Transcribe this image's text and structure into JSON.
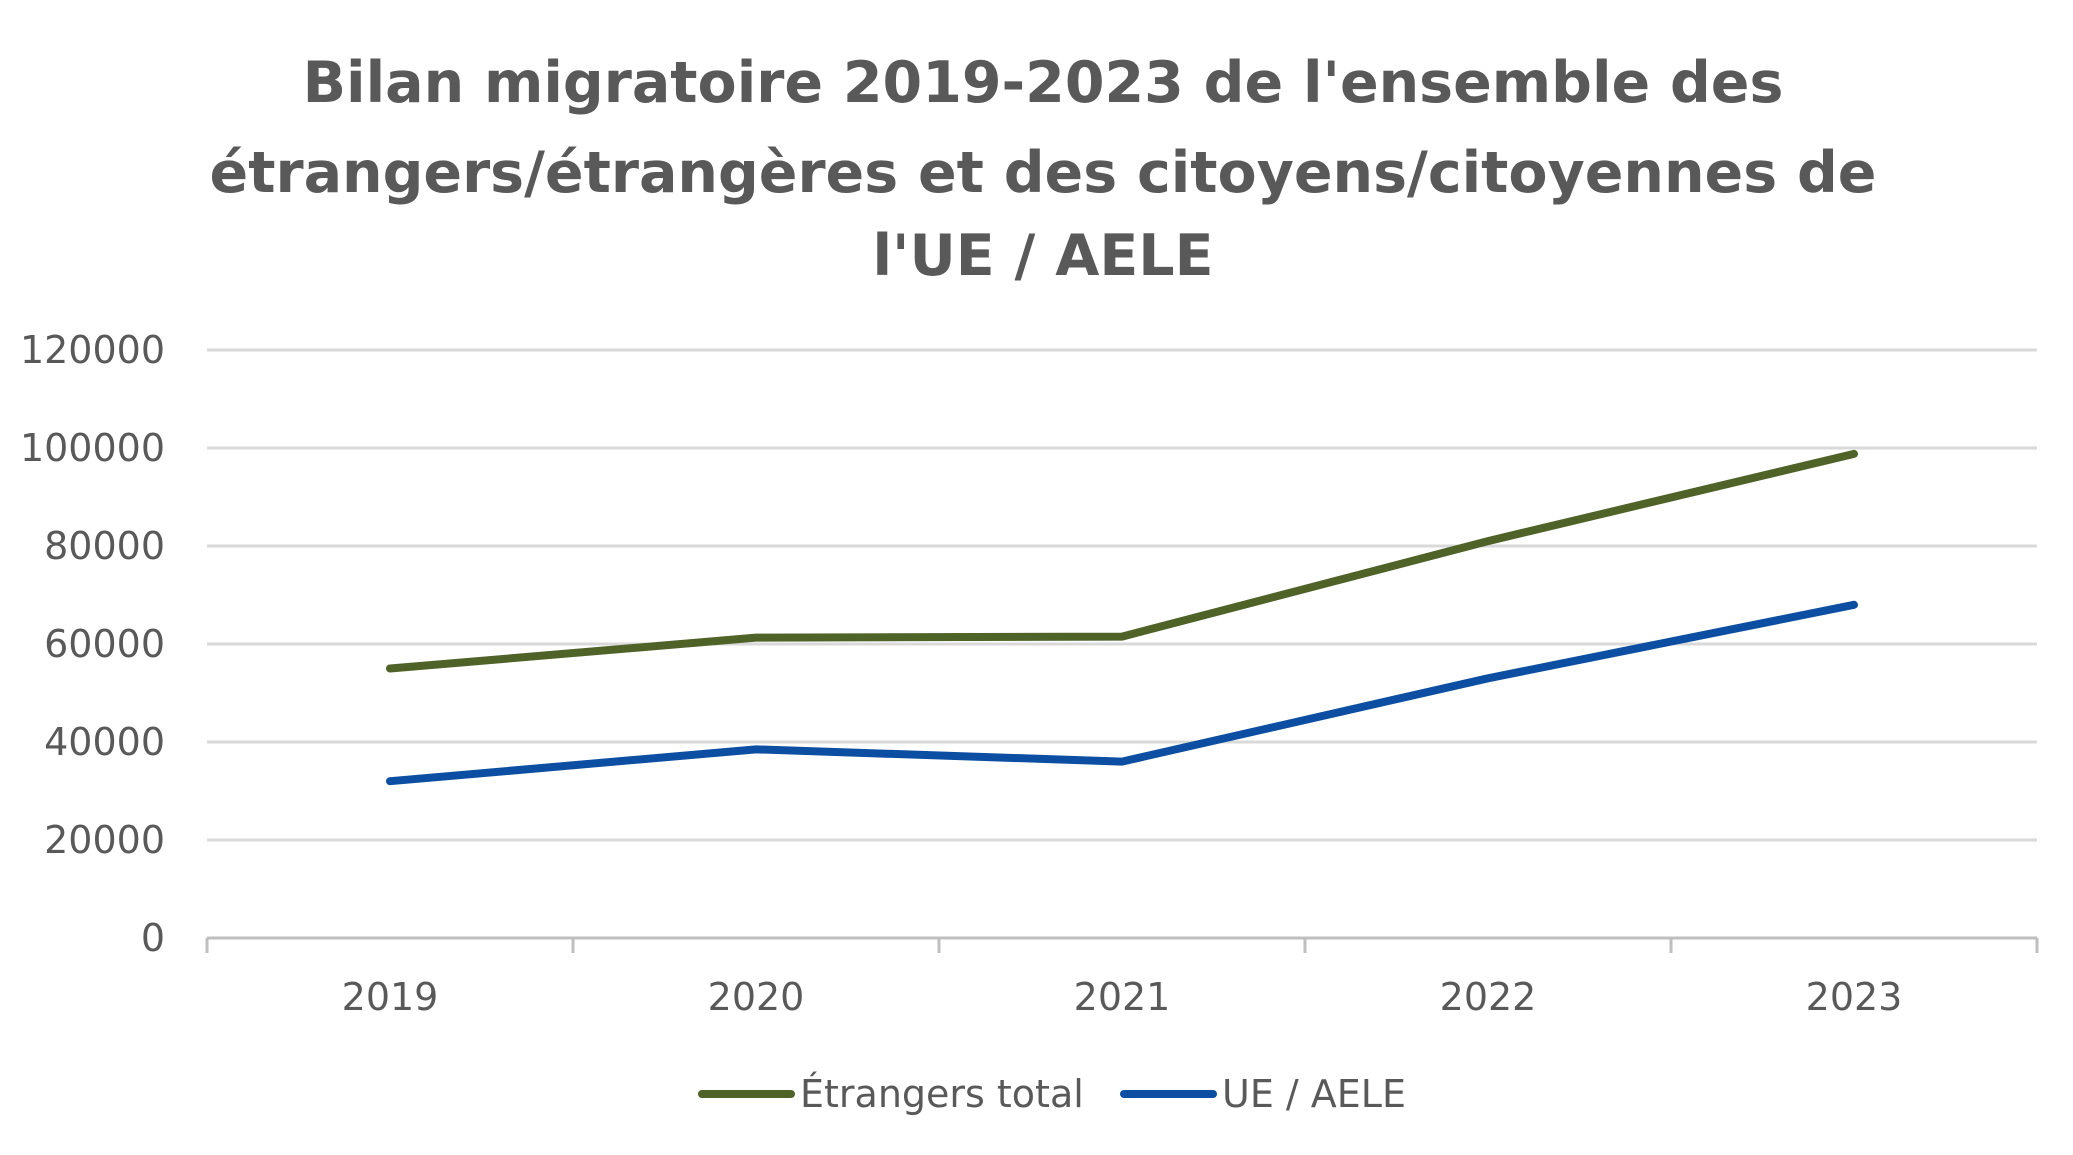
{
  "chart_data": {
    "type": "line",
    "title": [
      "Bilan migratoire 2019-2023 de l'ensemble des",
      "étrangers/étrangères et des citoyens/citoyennes de",
      "l'UE / AELE"
    ],
    "categories": [
      "2019",
      "2020",
      "2021",
      "2022",
      "2023"
    ],
    "ylim": [
      0,
      120000
    ],
    "yticks": [
      "0",
      "20000",
      "40000",
      "60000",
      "80000",
      "100000",
      "120000"
    ],
    "grid": true,
    "legend_position": "bottom",
    "series": [
      {
        "name": "Étrangers total",
        "color": "#4f6228",
        "values": [
          55000,
          61300,
          61500,
          81000,
          98800
        ]
      },
      {
        "name": "UE / AELE",
        "color": "#0b4ea2",
        "values": [
          32000,
          38500,
          36000,
          53000,
          68000
        ]
      }
    ]
  }
}
